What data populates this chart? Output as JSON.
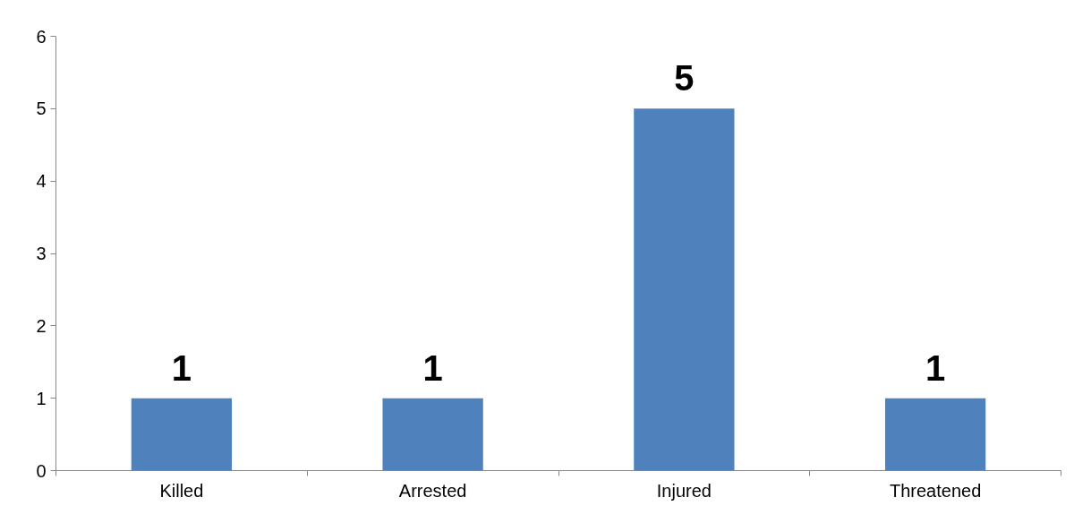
{
  "chart_data": {
    "type": "bar",
    "categories": [
      "Killed",
      "Arrested",
      "Injured",
      "Threatened"
    ],
    "values": [
      1,
      1,
      5,
      1
    ],
    "color": "#4f81bd",
    "ylim": [
      0,
      6
    ],
    "yticks": [
      0,
      1,
      2,
      3,
      4,
      5,
      6
    ],
    "grid": false,
    "data_labels": true
  }
}
